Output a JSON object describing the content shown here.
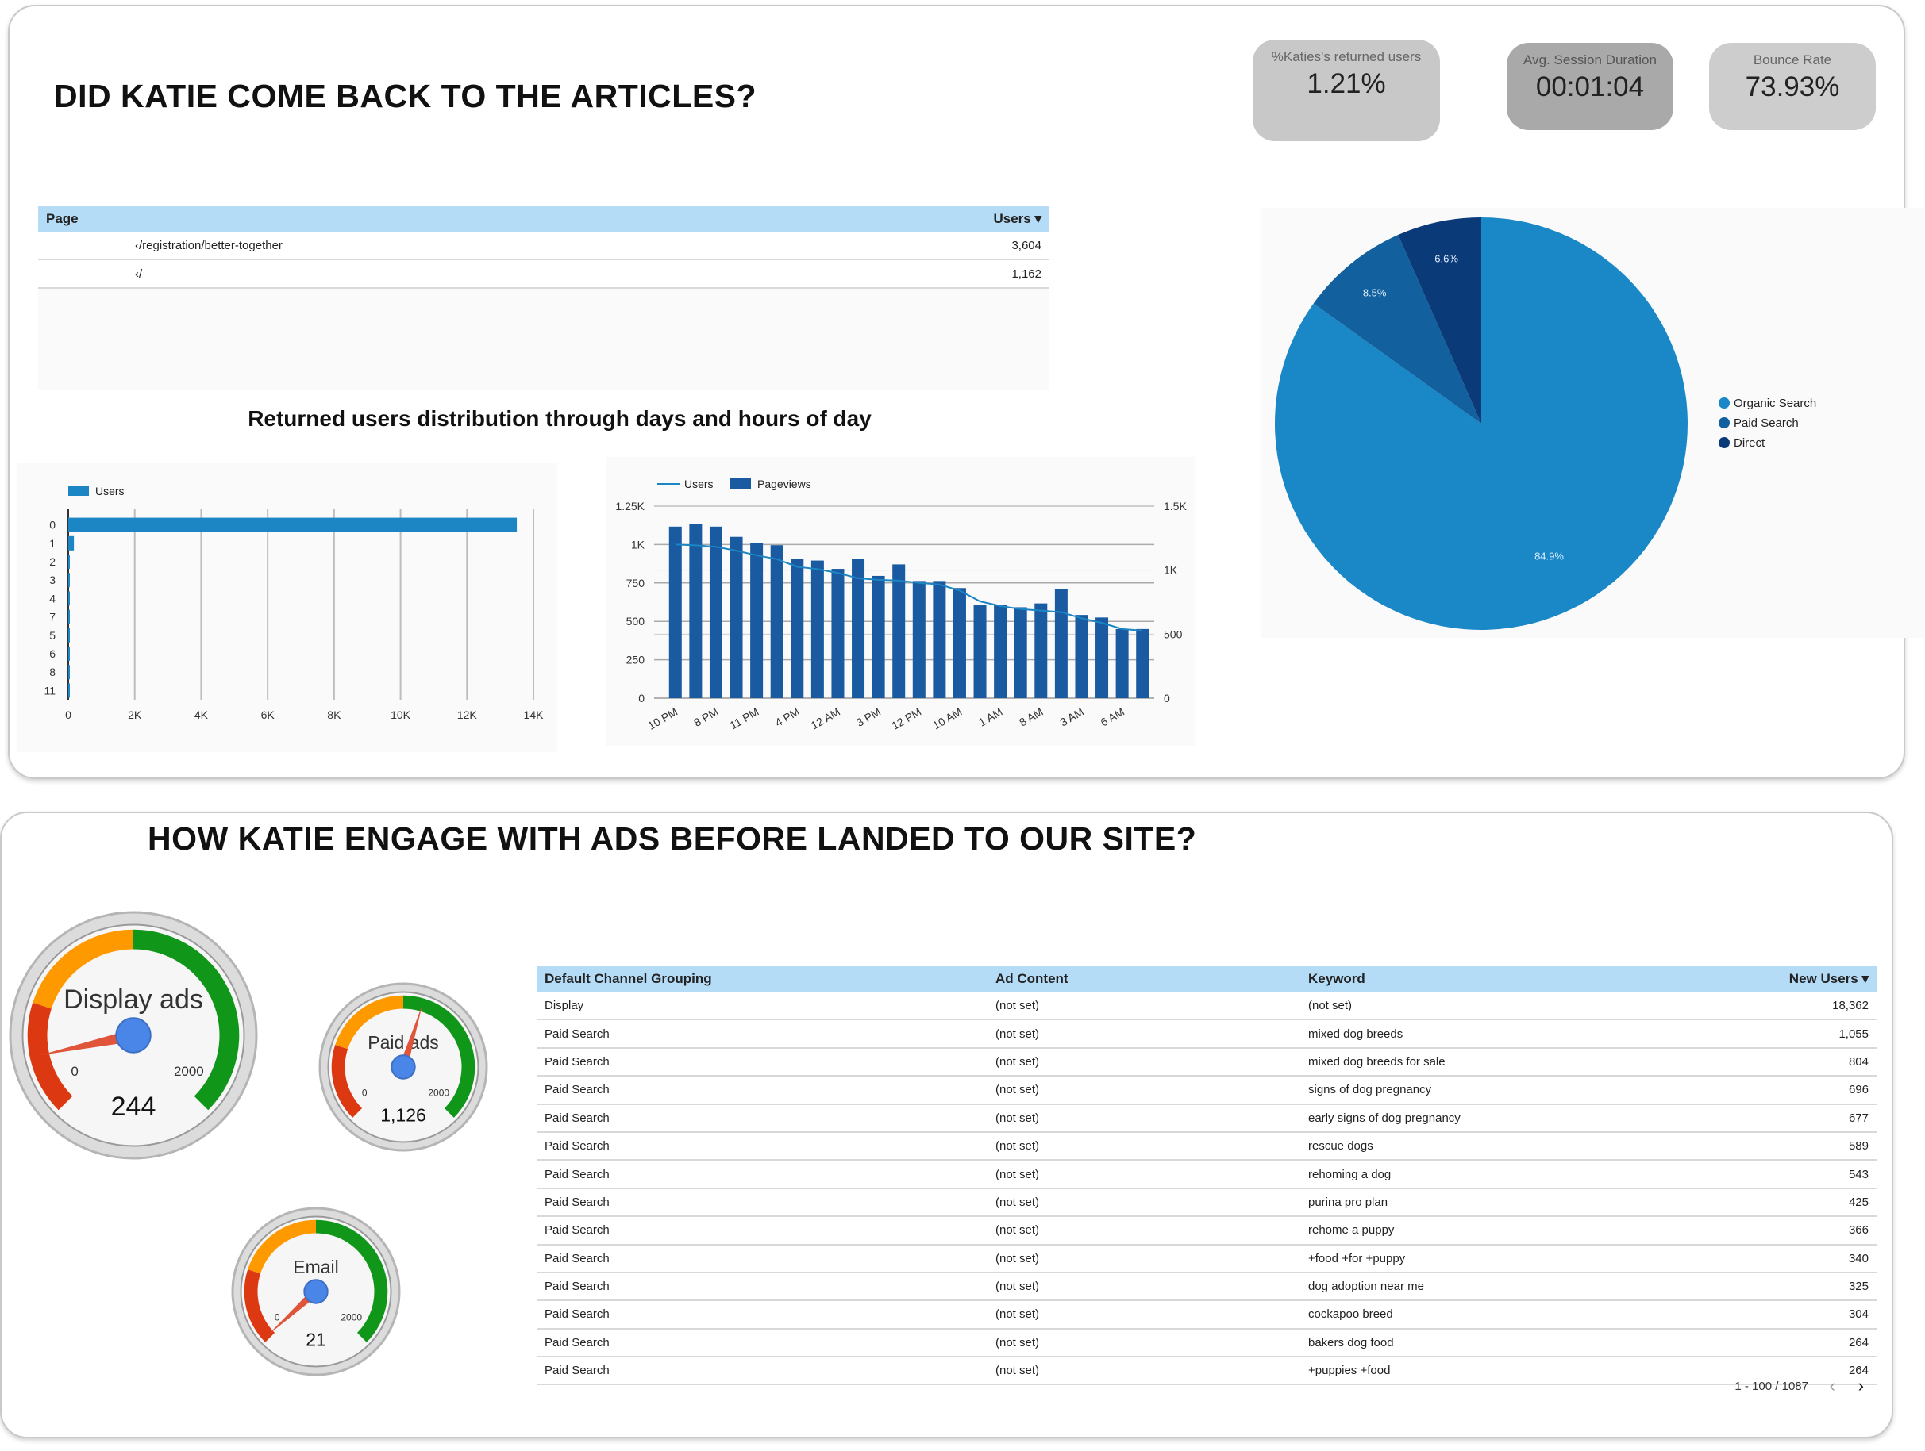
{
  "section1": {
    "title": "DID KATIE COME BACK TO THE ARTICLES?",
    "kpis": [
      {
        "label": "%Katies's returned users",
        "value": "1.21%"
      },
      {
        "label": "Avg. Session Duration",
        "value": "00:01:04"
      },
      {
        "label": "Bounce Rate",
        "value": "73.93%"
      }
    ],
    "page_table": {
      "headers": [
        "Page",
        "Users ▾"
      ],
      "rows": [
        {
          "page": "‹/registration/better-together",
          "users": "3,604"
        },
        {
          "page": "‹/",
          "users": "1,162"
        }
      ]
    },
    "subtitle": "Returned users distribution through days and hours of day"
  },
  "section2": {
    "title": "HOW KATIE ENGAGE WITH ADS  BEFORE LANDED TO OUR SITE?",
    "gauges": [
      {
        "label": "Display ads",
        "value": "244",
        "min": "0",
        "max": "2000",
        "num": 244
      },
      {
        "label": "Paid ads",
        "value": "1,126",
        "min": "0",
        "max": "2000",
        "num": 1126
      },
      {
        "label": "Email",
        "value": "21",
        "min": "0",
        "max": "2000",
        "num": 21
      }
    ],
    "channel_table": {
      "headers": [
        "Default Channel Grouping",
        "Ad Content",
        "Keyword",
        "New Users ▾"
      ],
      "rows": [
        [
          "Display",
          "(not set)",
          "(not set)",
          "18,362"
        ],
        [
          "Paid Search",
          "(not set)",
          "mixed dog breeds",
          "1,055"
        ],
        [
          "Paid Search",
          "(not set)",
          "mixed dog breeds for sale",
          "804"
        ],
        [
          "Paid Search",
          "(not set)",
          "signs of dog pregnancy",
          "696"
        ],
        [
          "Paid Search",
          "(not set)",
          "early signs of dog pregnancy",
          "677"
        ],
        [
          "Paid Search",
          "(not set)",
          "rescue dogs",
          "589"
        ],
        [
          "Paid Search",
          "(not set)",
          "rehoming a dog",
          "543"
        ],
        [
          "Paid Search",
          "(not set)",
          "purina pro plan",
          "425"
        ],
        [
          "Paid Search",
          "(not set)",
          "rehome a puppy",
          "366"
        ],
        [
          "Paid Search",
          "(not set)",
          "+food +for +puppy",
          "340"
        ],
        [
          "Paid Search",
          "(not set)",
          "dog adoption near me",
          "325"
        ],
        [
          "Paid Search",
          "(not set)",
          "cockapoo breed",
          "304"
        ],
        [
          "Paid Search",
          "(not set)",
          "bakers dog food",
          "264"
        ],
        [
          "Paid Search",
          "(not set)",
          "+puppies +food",
          "264"
        ]
      ],
      "pagination": "1 - 100 / 1087",
      "prev_icon": "chevron-left-icon",
      "next_icon": "chevron-right-icon"
    }
  },
  "chart_data": [
    {
      "type": "bar",
      "orientation": "horizontal",
      "legend": [
        "Users"
      ],
      "categories": [
        "0",
        "1",
        "2",
        "3",
        "4",
        "7",
        "5",
        "6",
        "8",
        "11"
      ],
      "values": [
        13500,
        170,
        40,
        30,
        25,
        20,
        20,
        15,
        15,
        10
      ],
      "xlim": [
        0,
        14000
      ],
      "xticks": [
        "0",
        "2K",
        "4K",
        "6K",
        "8K",
        "10K",
        "12K",
        "14K"
      ],
      "color": "#1c86c5"
    },
    {
      "type": "bar",
      "legend": [
        "Users",
        "Pageviews"
      ],
      "categories": [
        "10 PM",
        "",
        "8 PM",
        "",
        "11 PM",
        "",
        "4 PM",
        "",
        "12 AM",
        "",
        "3 PM",
        "",
        "12 PM",
        "",
        "10 AM",
        "",
        "1 AM",
        "",
        "8 AM",
        "",
        "3 AM",
        "",
        "6 AM",
        ""
      ],
      "series": [
        {
          "name": "Pageviews",
          "type": "bar",
          "axis": "right",
          "values": [
            1340,
            1360,
            1340,
            1260,
            1210,
            1195,
            1090,
            1075,
            1010,
            1085,
            955,
            1045,
            915,
            915,
            860,
            725,
            730,
            710,
            740,
            850,
            650,
            630,
            540,
            540
          ]
        },
        {
          "name": "Users",
          "type": "line",
          "axis": "left",
          "values": [
            1000,
            995,
            985,
            960,
            930,
            905,
            855,
            840,
            815,
            780,
            770,
            765,
            750,
            740,
            700,
            630,
            600,
            580,
            570,
            560,
            520,
            490,
            450,
            440
          ]
        }
      ],
      "ylim_left": [
        0,
        1250
      ],
      "yticks_left": [
        "0",
        "250",
        "500",
        "750",
        "1K",
        "1.25K"
      ],
      "ylim_right": [
        0,
        1500
      ],
      "yticks_right": [
        "0",
        "500",
        "1K",
        "1.5K"
      ],
      "color": "#195aa0",
      "line_color": "#1c86c5"
    },
    {
      "type": "pie",
      "labels": [
        "Organic Search",
        "Paid Search",
        "Direct"
      ],
      "values": [
        84.9,
        8.5,
        6.6
      ],
      "data_labels": [
        "84.9%",
        "8.5%",
        "6.6%"
      ],
      "colors": [
        "#1a87c6",
        "#12619e",
        "#0b3a78"
      ],
      "legend_position": "right"
    }
  ]
}
